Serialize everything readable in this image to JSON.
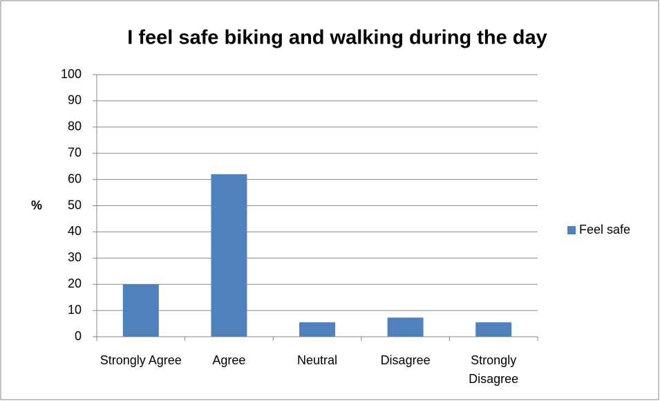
{
  "chart_data": {
    "type": "bar",
    "title": "I feel safe biking and walking during the day",
    "y_label": "%",
    "categories": [
      "Strongly Agree",
      "Agree",
      "Neutral",
      "Disagree",
      "Strongly Disagree"
    ],
    "series": [
      {
        "name": "Feel safe",
        "color": "#4f81bd",
        "values": [
          20,
          62,
          5.5,
          7.3,
          5.5
        ]
      }
    ],
    "ylim": [
      0,
      100
    ],
    "yticks": [
      0,
      10,
      20,
      30,
      40,
      50,
      60,
      70,
      80,
      90,
      100
    ],
    "grid": true,
    "legend": "right"
  }
}
